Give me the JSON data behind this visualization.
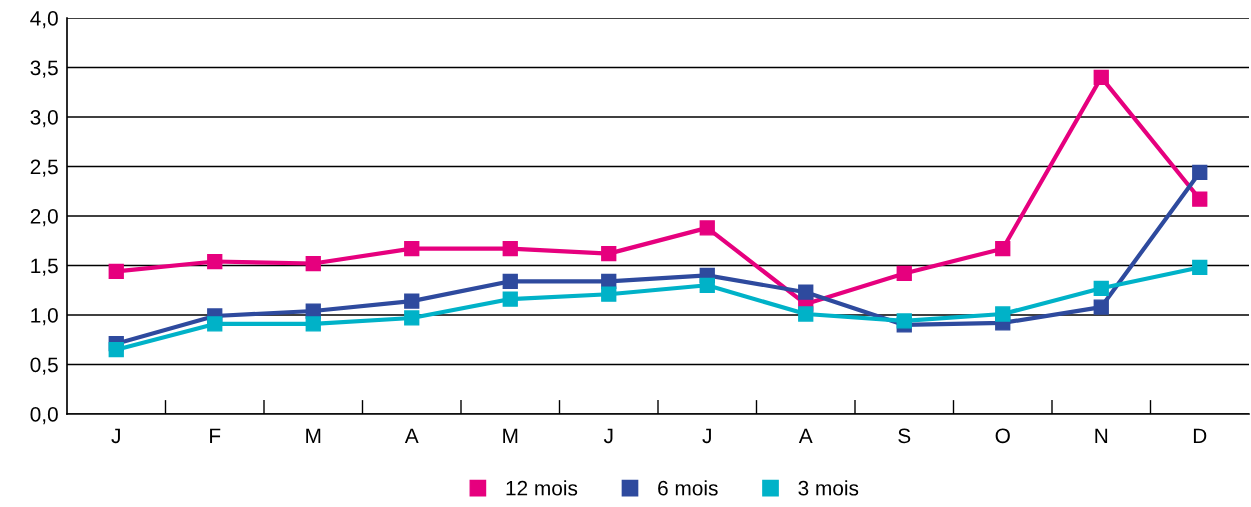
{
  "chart_data": {
    "type": "line",
    "categories": [
      "J",
      "F",
      "M",
      "A",
      "M",
      "J",
      "J",
      "A",
      "S",
      "O",
      "N",
      "D"
    ],
    "series": [
      {
        "name": "12 mois",
        "color": "#e6007e",
        "values": [
          1.44,
          1.54,
          1.52,
          1.67,
          1.67,
          1.62,
          1.88,
          1.11,
          1.42,
          1.67,
          3.4,
          2.17
        ]
      },
      {
        "name": "6 mois",
        "color": "#2e4a9e",
        "values": [
          0.71,
          0.99,
          1.04,
          1.14,
          1.34,
          1.34,
          1.4,
          1.23,
          0.9,
          0.92,
          1.08,
          2.44
        ]
      },
      {
        "name": "3 mois",
        "color": "#00b2c8",
        "values": [
          0.65,
          0.91,
          0.91,
          0.97,
          1.16,
          1.21,
          1.3,
          1.01,
          0.94,
          1.01,
          1.27,
          1.48
        ]
      }
    ],
    "ylim": [
      0,
      4
    ],
    "yticks": [
      {
        "value": 0,
        "label": "0,0"
      },
      {
        "value": 0.5,
        "label": "0,5"
      },
      {
        "value": 1,
        "label": "1,0"
      },
      {
        "value": 1.5,
        "label": "1,5"
      },
      {
        "value": 2,
        "label": "2,0"
      },
      {
        "value": 2.5,
        "label": "2,5"
      },
      {
        "value": 3,
        "label": "3,0"
      },
      {
        "value": 3.5,
        "label": "3,5"
      },
      {
        "value": 4,
        "label": "4,0"
      }
    ],
    "grid": "y",
    "legend": "bottom",
    "marker": "square",
    "line_style": "solid"
  }
}
